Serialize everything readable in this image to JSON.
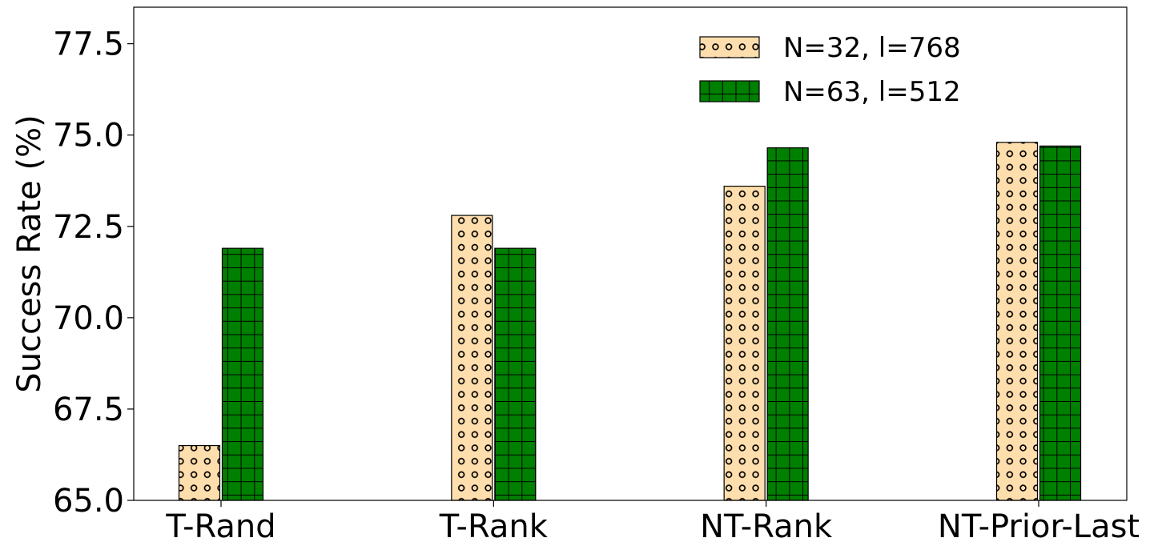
{
  "chart_data": {
    "type": "bar",
    "title": "",
    "xlabel": "",
    "ylabel": "Success Rate (%)",
    "ylim": [
      65.0,
      78.5
    ],
    "yticks": [
      "65.0",
      "67.5",
      "70.0",
      "72.5",
      "75.0",
      "77.5"
    ],
    "ytick_values": [
      65.0,
      67.5,
      70.0,
      72.5,
      75.0,
      77.5
    ],
    "categories": [
      "T-Rand",
      "T-Rank",
      "NT-Rank",
      "NT-Prior-Last"
    ],
    "series": [
      {
        "name": "N=32, l=768",
        "values": [
          66.5,
          72.8,
          73.6,
          74.8
        ],
        "color": "#ffdead",
        "pattern": "circles"
      },
      {
        "name": "N=63, l=512",
        "values": [
          71.9,
          71.9,
          74.65,
          74.7
        ],
        "color": "#008000",
        "pattern": "grid"
      }
    ],
    "legend": "top-right",
    "grid": false
  }
}
